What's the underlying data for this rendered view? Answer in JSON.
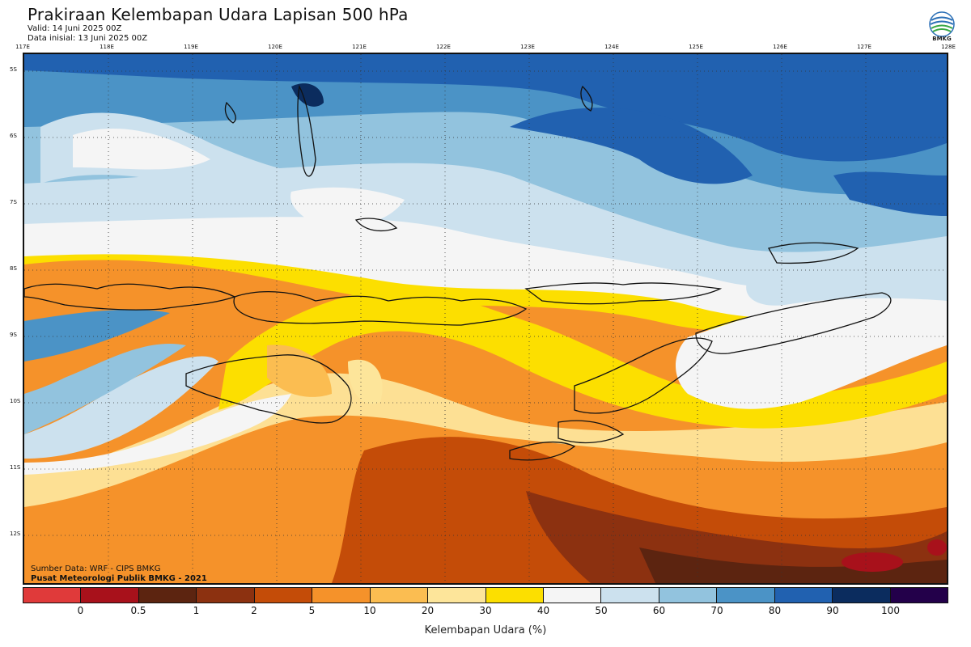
{
  "header": {
    "title": "Prakiraan Kelembapan Udara Lapisan 500 hPa",
    "valid": "Valid: 14 Juni 2025 00Z",
    "init": "Data inisial: 13 Juni 2025 00Z"
  },
  "logo": {
    "label": "BMKG"
  },
  "map": {
    "lon_labels": [
      "117E",
      "118E",
      "119E",
      "120E",
      "121E",
      "122E",
      "123E",
      "124E",
      "125E",
      "126E",
      "127E",
      "128E"
    ],
    "lat_labels": [
      "5S",
      "6S",
      "7S",
      "8S",
      "9S",
      "10S",
      "11S",
      "12S"
    ],
    "grid": true,
    "field": "relative humidity at 500 hPa (%)"
  },
  "credits": {
    "source": "Sumber Data: WRF - CIPS BMKG",
    "org": "Pusat Meteorologi Publik BMKG - 2021"
  },
  "colorbar": {
    "colors": [
      "#e03a3a",
      "#a8111b",
      "#5c2410",
      "#8c3110",
      "#c44c08",
      "#f5922a",
      "#fbbd51",
      "#fde59a",
      "#fcdf00",
      "#f5f5f5",
      "#cce1ee",
      "#92c3de",
      "#4b93c6",
      "#2161b0",
      "#0b2c5e",
      "#23004a"
    ],
    "ticks": [
      "0",
      "0.5",
      "1",
      "2",
      "5",
      "10",
      "20",
      "30",
      "40",
      "50",
      "60",
      "70",
      "80",
      "90",
      "100"
    ],
    "label": "Kelembapan Udara (%)"
  }
}
